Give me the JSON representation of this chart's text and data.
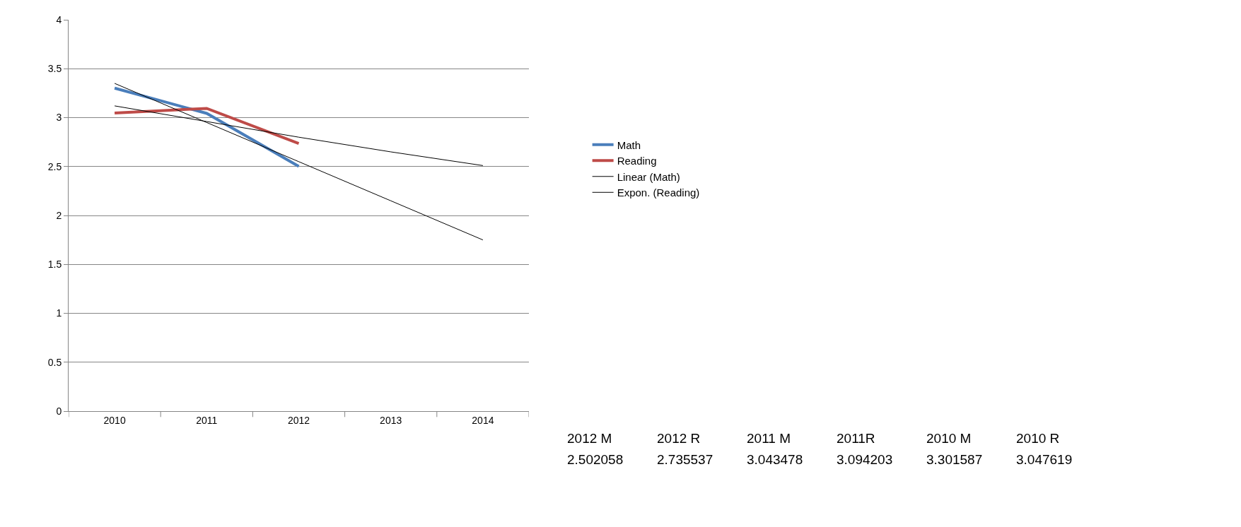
{
  "chart_data": {
    "type": "line",
    "categories": [
      "2010",
      "2011",
      "2012",
      "2013",
      "2014"
    ],
    "series": [
      {
        "name": "Math",
        "color": "#4a7ebb",
        "values": [
          3.301587,
          3.043478,
          2.502058,
          null,
          null
        ]
      },
      {
        "name": "Reading",
        "color": "#be4b48",
        "values": [
          3.047619,
          3.094203,
          2.735537,
          null,
          null
        ]
      },
      {
        "name": "Linear (Math)",
        "color": "#000000",
        "values": [
          3.35,
          2.95,
          2.55,
          2.15,
          1.75
        ]
      },
      {
        "name": "Expon. (Reading)",
        "color": "#000000",
        "values": [
          3.12,
          2.96,
          2.8,
          2.65,
          2.51
        ]
      }
    ],
    "ylim": [
      0,
      4
    ],
    "yticks": [
      0,
      0.5,
      1,
      1.5,
      2,
      2.5,
      3,
      3.5,
      4
    ],
    "grid": "y",
    "legend": "right",
    "marker": "none",
    "line_style": "solid",
    "annotations": [
      "2012 M",
      "2012 R",
      "2011 M",
      "2011R",
      "2010 M",
      "2010 R",
      "2.502058",
      "2.735537",
      "3.043478",
      "3.094203",
      "3.301587",
      "3.047619"
    ]
  }
}
